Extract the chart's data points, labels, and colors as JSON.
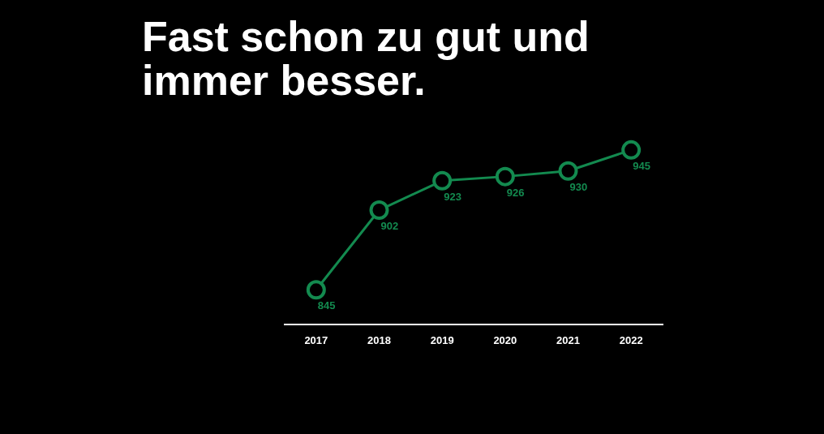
{
  "chart_data": {
    "type": "line",
    "title": "Fast schon zu gut und immer besser.",
    "categories": [
      "2017",
      "2018",
      "2019",
      "2020",
      "2021",
      "2022"
    ],
    "series": [
      {
        "color": "#138a4f",
        "values": [
          845,
          902,
          923,
          926,
          930,
          945
        ]
      }
    ],
    "data_labels": true,
    "marker": "circle",
    "grid": false,
    "legend": false
  }
}
